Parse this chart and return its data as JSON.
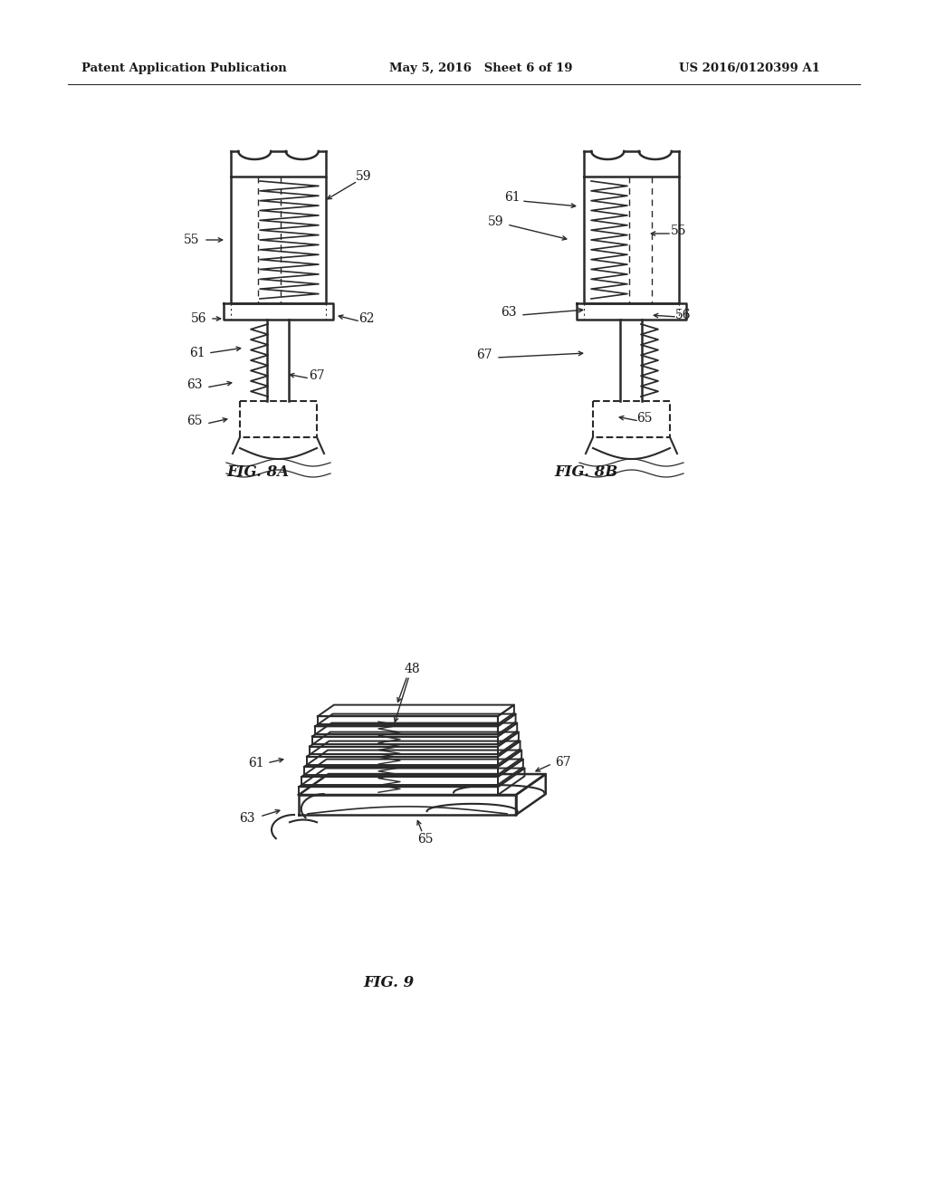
{
  "bg_color": "#ffffff",
  "header_left": "Patent Application Publication",
  "header_mid": "May 5, 2016   Sheet 6 of 19",
  "header_right": "US 2016/0120399 A1",
  "fig8a_label": "FIG. 8A",
  "fig8b_label": "FIG. 8B",
  "fig9_label": "FIG. 9",
  "line_color": "#2a2a2a",
  "label_color": "#1a1a1a"
}
